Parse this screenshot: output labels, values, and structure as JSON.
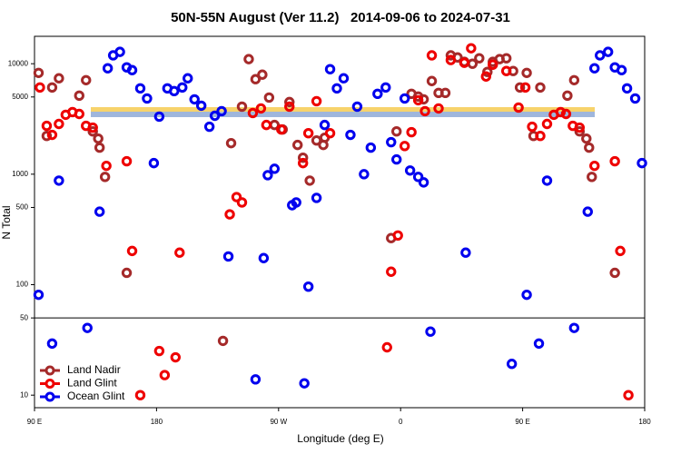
{
  "chart_data": {
    "type": "scatter",
    "title": "50N-55N August (Ver 11.2)   2014-09-06 to 2024-07-31",
    "xlabel": "Longitude (deg E)",
    "ylabel": "N Total",
    "log_y": true,
    "panel_break": 50,
    "legend": "lower left",
    "xlim": [
      90,
      540
    ],
    "xticks": [
      {
        "value": 90,
        "label": "90 E"
      },
      {
        "value": 180,
        "label": "180"
      },
      {
        "value": 270,
        "label": "90 W"
      },
      {
        "value": 360,
        "label": "0"
      },
      {
        "value": 450,
        "label": "90 E"
      },
      {
        "value": 540,
        "label": "180"
      }
    ],
    "ylim": [
      7.7,
      17700
    ],
    "yticks": [
      10,
      50,
      100,
      500,
      1000,
      5000,
      10000
    ],
    "series": [
      {
        "name": "Land Nadir",
        "color": "#a52a2a",
        "x": [
          93,
          99,
          103,
          108,
          123,
          128,
          133,
          137,
          138,
          142,
          158,
          235,
          243,
          248,
          253,
          258,
          263,
          267,
          273,
          278,
          284,
          288,
          293,
          298,
          303,
          304,
          357,
          368,
          373,
          377,
          383,
          388,
          393,
          397,
          402,
          407,
          413,
          418,
          424,
          428,
          433,
          438,
          443,
          448,
          453,
          458,
          463,
          483,
          488,
          492,
          497,
          499,
          501,
          518,
          353,
          229
        ],
        "values": [
          8260,
          2220,
          6100,
          7380,
          5140,
          7100,
          2440,
          2100,
          1740,
          945,
          128,
          1910,
          4090,
          11000,
          7240,
          7960,
          4940,
          2790,
          2540,
          4500,
          1840,
          1410,
          875,
          2020,
          1840,
          2140,
          2440,
          5340,
          5040,
          4760,
          6970,
          5440,
          5440,
          11900,
          11400,
          10400,
          10000,
          11200,
          8430,
          10400,
          11000,
          11200,
          8590,
          6100,
          8260,
          2220,
          6100,
          5140,
          7100,
          2440,
          2100,
          1740,
          945,
          128,
          264,
          31
        ]
      },
      {
        "name": "Land Glint",
        "color": "#ee0000",
        "x": [
          94,
          99,
          103,
          108,
          113,
          118,
          123,
          128,
          133,
          143,
          158,
          162,
          197,
          234,
          239,
          243,
          251,
          257,
          261,
          272,
          278,
          288,
          292,
          298,
          308,
          353,
          358,
          363,
          368,
          373,
          378,
          383,
          388,
          397,
          407,
          412,
          423,
          428,
          438,
          447,
          452,
          457,
          463,
          468,
          473,
          478,
          482,
          487,
          492,
          503,
          518,
          522,
          168,
          182,
          186,
          194,
          350,
          528
        ],
        "values": [
          6100,
          2740,
          2270,
          2850,
          3450,
          3650,
          3510,
          2740,
          2640,
          1190,
          1310,
          202,
          195,
          433,
          621,
          555,
          3580,
          3940,
          2790,
          2540,
          4090,
          1260,
          2350,
          4580,
          2350,
          131,
          279,
          1800,
          2400,
          4670,
          3720,
          11900,
          3940,
          10800,
          10200,
          13800,
          7660,
          9800,
          8590,
          4010,
          6100,
          2690,
          2220,
          2850,
          3450,
          3650,
          3510,
          2740,
          2640,
          1190,
          1310,
          202,
          10,
          25.1,
          15.2,
          22,
          27.1,
          10
        ]
      },
      {
        "name": "Ocean Glint",
        "color": "#0000ee",
        "x": [
          93,
          108,
          138,
          144,
          148,
          153,
          158,
          162,
          168,
          173,
          178,
          182,
          188,
          193,
          199,
          203,
          208,
          213,
          219,
          223,
          228,
          233,
          259,
          262,
          267,
          280,
          283,
          292,
          298,
          304,
          308,
          313,
          318,
          323,
          328,
          333,
          338,
          343,
          349,
          353,
          357,
          363,
          367,
          373,
          377,
          408,
          453,
          468,
          498,
          503,
          507,
          513,
          518,
          523,
          527,
          533,
          538,
          103,
          129,
          253,
          289,
          382,
          442,
          462,
          488
        ],
        "values": [
          81,
          875,
          458,
          9090,
          11900,
          12800,
          9270,
          8750,
          5980,
          4850,
          1260,
          3320,
          5980,
          5650,
          6100,
          7380,
          4760,
          4170,
          2690,
          3380,
          3720,
          180,
          174,
          980,
          1120,
          524,
          555,
          96,
          610,
          2790,
          8920,
          5980,
          7380,
          2270,
          4090,
          1000,
          1740,
          5340,
          6100,
          1950,
          1360,
          4850,
          1080,
          945,
          843,
          195,
          81,
          875,
          458,
          9090,
          11900,
          12800,
          9270,
          8750,
          5980,
          4850,
          1260,
          29.3,
          40.6,
          13.9,
          12.8,
          37.6,
          19.2,
          29.3,
          40.6
        ]
      }
    ]
  }
}
